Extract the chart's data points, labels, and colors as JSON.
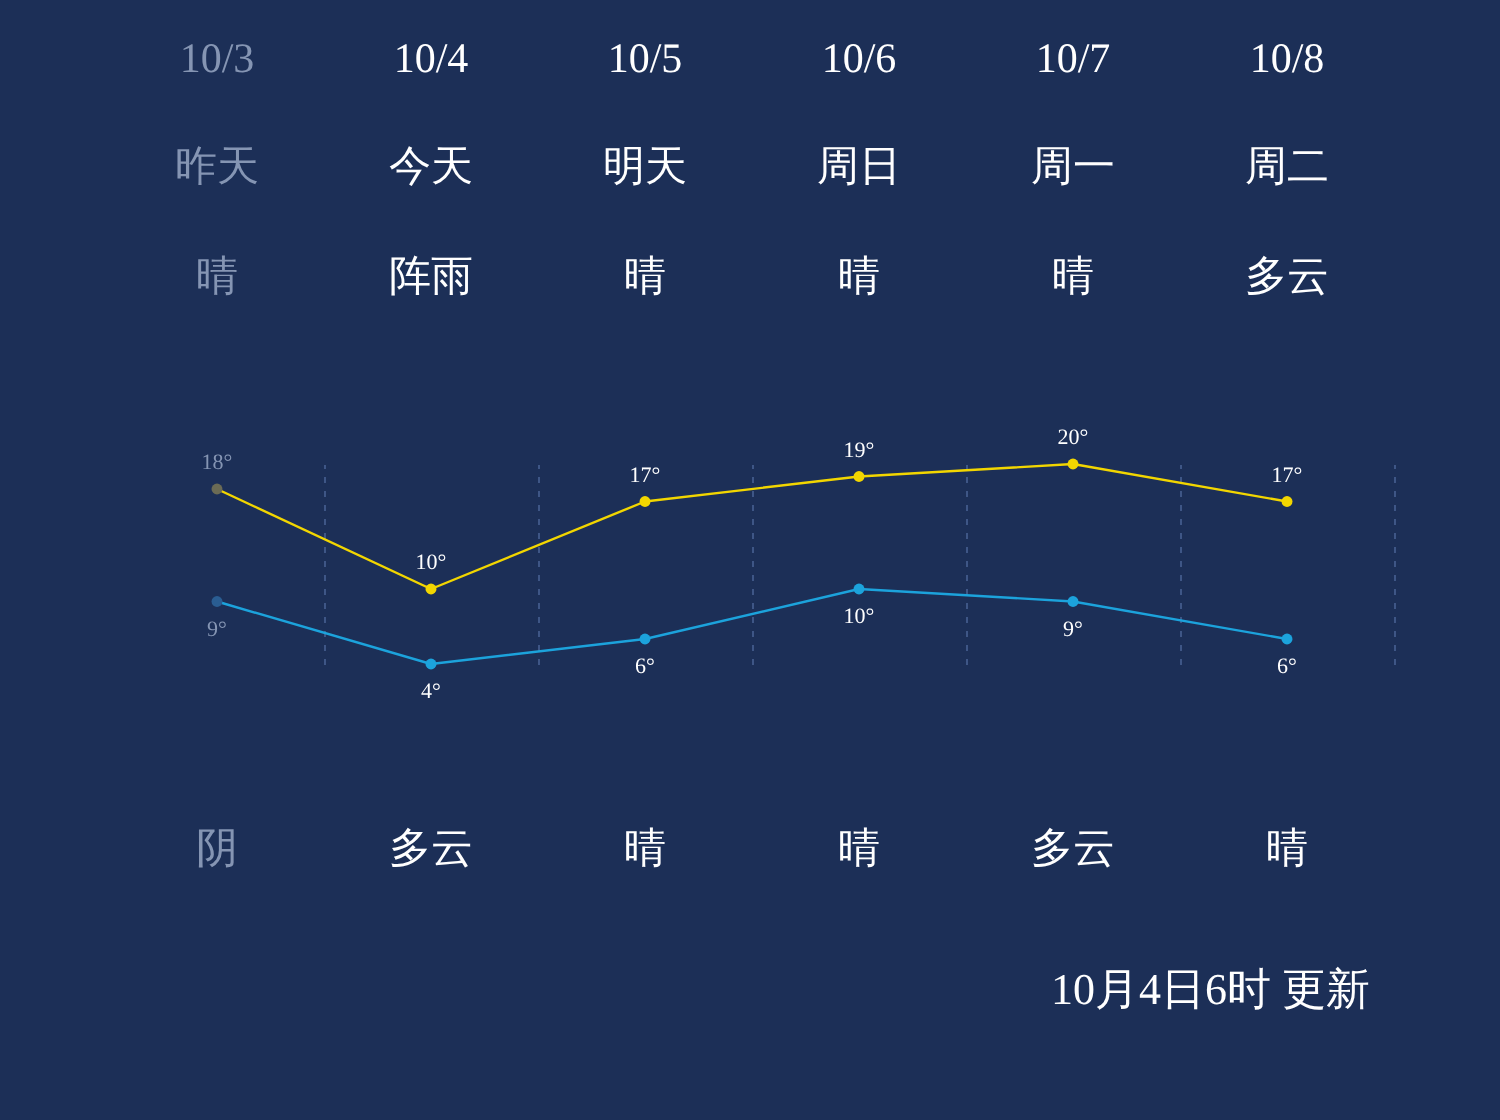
{
  "chart_data": {
    "type": "line",
    "categories": [
      "10/3",
      "10/4",
      "10/5",
      "10/6",
      "10/7",
      "10/8"
    ],
    "series": [
      {
        "color": "#f2d600",
        "colors": [
          "#6b6b55",
          "#f2d600",
          "#f2d600",
          "#f2d600",
          "#f2d600",
          "#f2d600"
        ],
        "values": [
          18,
          10,
          17,
          19,
          20,
          17
        ],
        "value_labels": [
          "18°",
          "10°",
          "17°",
          "19°",
          "20°",
          "17°"
        ]
      },
      {
        "color": "#1ca3dc",
        "colors": [
          "#2a5d92",
          "#1ca3dc",
          "#1ca3dc",
          "#1ca3dc",
          "#1ca3dc",
          "#1ca3dc"
        ],
        "values": [
          9,
          4,
          6,
          10,
          9,
          6
        ],
        "value_labels": [
          "9°",
          "4°",
          "6°",
          "10°",
          "9°",
          "6°"
        ]
      }
    ],
    "marker": "circle",
    "grid": "x",
    "annotations": [
      "昨天",
      "今天",
      "明天",
      "周日",
      "周一",
      "周二",
      "晴",
      "阵雨",
      "晴",
      "晴",
      "晴",
      "多云",
      "阴",
      "多云",
      "晴",
      "晴",
      "多云",
      "晴",
      "10月4日6时 更新"
    ]
  }
}
